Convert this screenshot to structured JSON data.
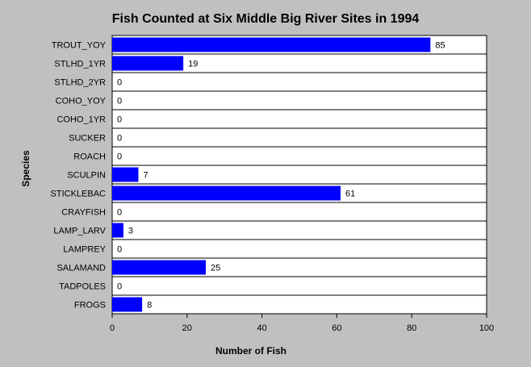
{
  "chart_data": {
    "type": "bar",
    "orientation": "horizontal",
    "title": "Fish Counted at Six Middle Big River Sites in 1994",
    "xlabel": "Number of Fish",
    "ylabel": "Species",
    "xlim": [
      0,
      100
    ],
    "xticks": [
      0,
      20,
      40,
      60,
      80,
      100
    ],
    "grid": true,
    "categories": [
      "TROUT_YOY",
      "STLHD_1YR",
      "STLHD_2YR",
      "COHO_YOY",
      "COHO_1YR",
      "SUCKER",
      "ROACH",
      "SCULPIN",
      "STICKLEBAC",
      "CRAYFISH",
      "LAMP_LARV",
      "LAMPREY",
      "SALAMAND",
      "TADPOLES",
      "FROGS"
    ],
    "values": [
      85,
      19,
      0,
      0,
      0,
      0,
      0,
      7,
      61,
      0,
      3,
      0,
      25,
      0,
      8
    ],
    "colors": {
      "bar": "#0000ff",
      "background": "#c0c0c0",
      "plot_area": "#ffffff",
      "text": "#000000"
    }
  }
}
